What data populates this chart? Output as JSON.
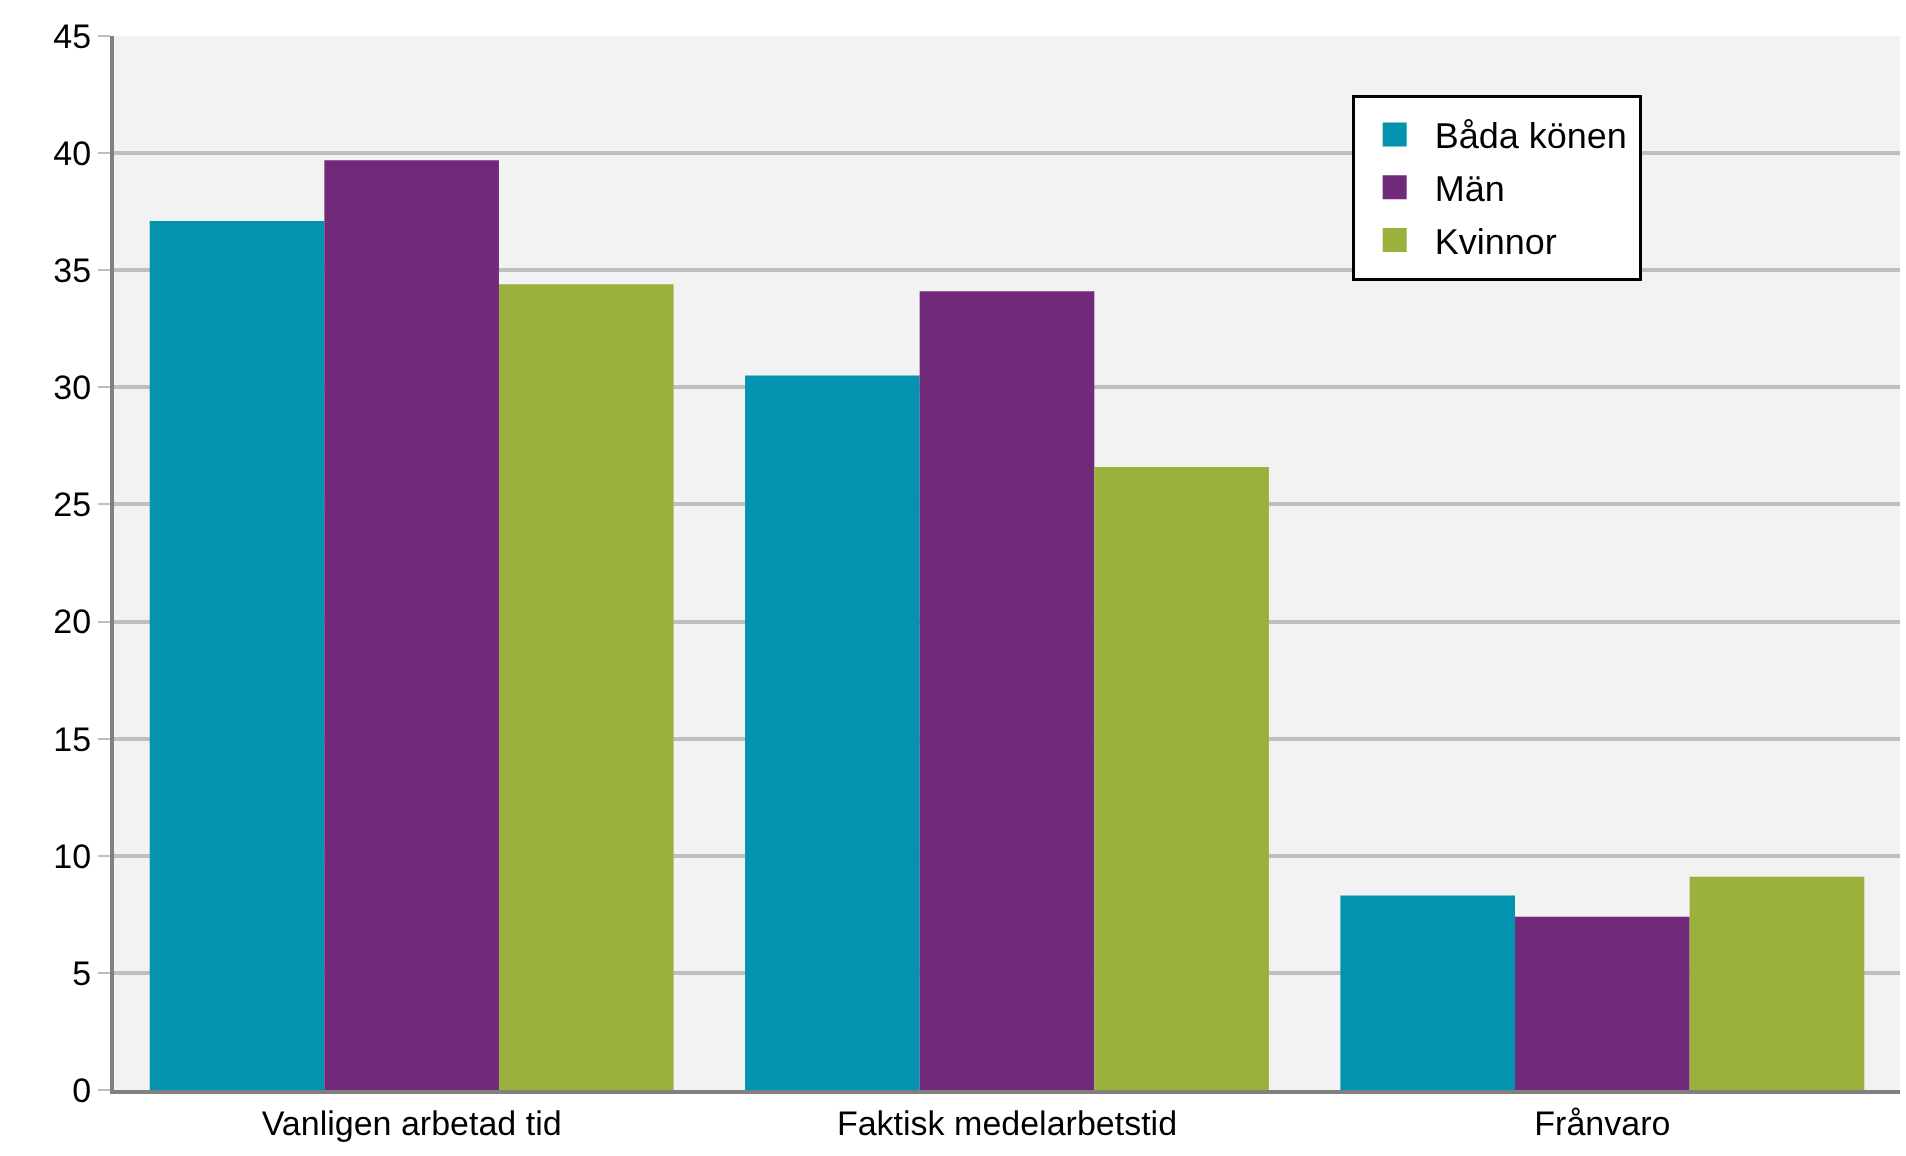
{
  "chart_data": {
    "type": "bar",
    "categories": [
      "Vanligen arbetad tid",
      "Faktisk medelarbetstid",
      "Frånvaro"
    ],
    "series": [
      {
        "name": "Båda könen",
        "color": "#0493ae",
        "values": [
          37.1,
          30.5,
          8.3
        ]
      },
      {
        "name": "Män",
        "color": "#712a7a",
        "values": [
          39.7,
          34.1,
          7.4
        ]
      },
      {
        "name": "Kvinnor",
        "color": "#9bb13d",
        "values": [
          34.4,
          26.6,
          9.1
        ]
      }
    ],
    "ylim": [
      0,
      45
    ],
    "yticks": [
      0,
      5,
      10,
      15,
      20,
      25,
      30,
      35,
      40,
      45
    ],
    "grid": "y",
    "legend": "top right"
  }
}
